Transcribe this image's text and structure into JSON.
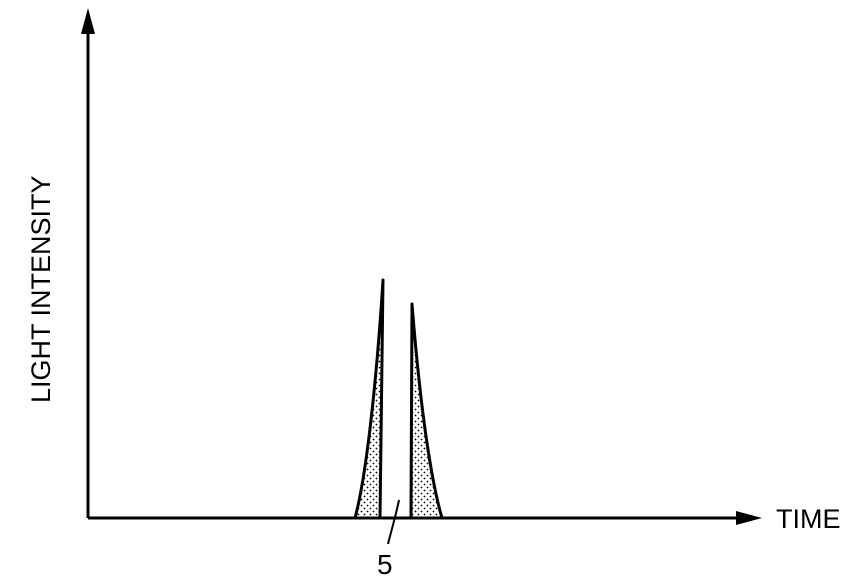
{
  "diagram": {
    "x_axis_label": "TIME",
    "y_axis_label": "LIGHT INTENSITY",
    "reference_numeral": "5",
    "pulses": [
      {
        "name": "left-pulse",
        "shading": "dotted",
        "relative_height": 1.0
      },
      {
        "name": "right-pulse",
        "shading": "dotted",
        "relative_height": 0.91
      }
    ]
  },
  "colors": {
    "line": "#000000",
    "background": "#ffffff"
  }
}
